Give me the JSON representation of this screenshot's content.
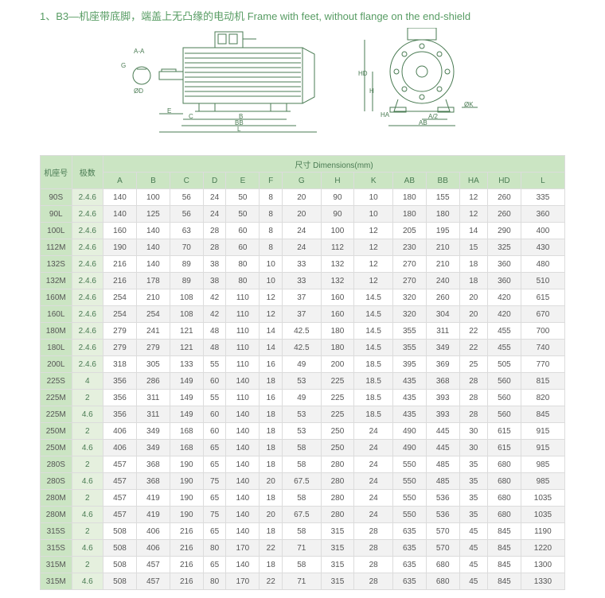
{
  "heading": "1、B3—机座带底脚，端盖上无凸缘的电动机    Frame with feet, without flange on the end-shield",
  "diagram": {
    "left_labels": [
      "A-A",
      "G",
      "ØD",
      "C",
      "E",
      "B",
      "BB",
      "L"
    ],
    "right_labels": [
      "HD",
      "H",
      "HA",
      "A/2",
      "AB",
      "ØK"
    ]
  },
  "table": {
    "header_groups": {
      "frame": "机座号",
      "pole": "极数",
      "dims": "尺寸  Dimensions(mm)"
    },
    "header_cols": [
      "A",
      "B",
      "C",
      "D",
      "E",
      "F",
      "G",
      "H",
      "K",
      "AB",
      "BB",
      "HA",
      "HD",
      "L"
    ],
    "rows": [
      [
        "90S",
        "2.4.6",
        "140",
        "100",
        "56",
        "24",
        "50",
        "8",
        "20",
        "90",
        "10",
        "180",
        "155",
        "12",
        "260",
        "335"
      ],
      [
        "90L",
        "2.4.6",
        "140",
        "125",
        "56",
        "24",
        "50",
        "8",
        "20",
        "90",
        "10",
        "180",
        "180",
        "12",
        "260",
        "360"
      ],
      [
        "100L",
        "2.4.6",
        "160",
        "140",
        "63",
        "28",
        "60",
        "8",
        "24",
        "100",
        "12",
        "205",
        "195",
        "14",
        "290",
        "400"
      ],
      [
        "112M",
        "2.4.6",
        "190",
        "140",
        "70",
        "28",
        "60",
        "8",
        "24",
        "112",
        "12",
        "230",
        "210",
        "15",
        "325",
        "430"
      ],
      [
        "132S",
        "2.4.6",
        "216",
        "140",
        "89",
        "38",
        "80",
        "10",
        "33",
        "132",
        "12",
        "270",
        "210",
        "18",
        "360",
        "480"
      ],
      [
        "132M",
        "2.4.6",
        "216",
        "178",
        "89",
        "38",
        "80",
        "10",
        "33",
        "132",
        "12",
        "270",
        "240",
        "18",
        "360",
        "510"
      ],
      [
        "160M",
        "2.4.6",
        "254",
        "210",
        "108",
        "42",
        "110",
        "12",
        "37",
        "160",
        "14.5",
        "320",
        "260",
        "20",
        "420",
        "615"
      ],
      [
        "160L",
        "2.4.6",
        "254",
        "254",
        "108",
        "42",
        "110",
        "12",
        "37",
        "160",
        "14.5",
        "320",
        "304",
        "20",
        "420",
        "670"
      ],
      [
        "180M",
        "2.4.6",
        "279",
        "241",
        "121",
        "48",
        "110",
        "14",
        "42.5",
        "180",
        "14.5",
        "355",
        "311",
        "22",
        "455",
        "700"
      ],
      [
        "180L",
        "2.4.6",
        "279",
        "279",
        "121",
        "48",
        "110",
        "14",
        "42.5",
        "180",
        "14.5",
        "355",
        "349",
        "22",
        "455",
        "740"
      ],
      [
        "200L",
        "2.4.6",
        "318",
        "305",
        "133",
        "55",
        "110",
        "16",
        "49",
        "200",
        "18.5",
        "395",
        "369",
        "25",
        "505",
        "770"
      ],
      [
        "225S",
        "4",
        "356",
        "286",
        "149",
        "60",
        "140",
        "18",
        "53",
        "225",
        "18.5",
        "435",
        "368",
        "28",
        "560",
        "815"
      ],
      [
        "225M",
        "2",
        "356",
        "311",
        "149",
        "55",
        "110",
        "16",
        "49",
        "225",
        "18.5",
        "435",
        "393",
        "28",
        "560",
        "820"
      ],
      [
        "225M",
        "4.6",
        "356",
        "311",
        "149",
        "60",
        "140",
        "18",
        "53",
        "225",
        "18.5",
        "435",
        "393",
        "28",
        "560",
        "845"
      ],
      [
        "250M",
        "2",
        "406",
        "349",
        "168",
        "60",
        "140",
        "18",
        "53",
        "250",
        "24",
        "490",
        "445",
        "30",
        "615",
        "915"
      ],
      [
        "250M",
        "4.6",
        "406",
        "349",
        "168",
        "65",
        "140",
        "18",
        "58",
        "250",
        "24",
        "490",
        "445",
        "30",
        "615",
        "915"
      ],
      [
        "280S",
        "2",
        "457",
        "368",
        "190",
        "65",
        "140",
        "18",
        "58",
        "280",
        "24",
        "550",
        "485",
        "35",
        "680",
        "985"
      ],
      [
        "280S",
        "4.6",
        "457",
        "368",
        "190",
        "75",
        "140",
        "20",
        "67.5",
        "280",
        "24",
        "550",
        "485",
        "35",
        "680",
        "985"
      ],
      [
        "280M",
        "2",
        "457",
        "419",
        "190",
        "65",
        "140",
        "18",
        "58",
        "280",
        "24",
        "550",
        "536",
        "35",
        "680",
        "1035"
      ],
      [
        "280M",
        "4.6",
        "457",
        "419",
        "190",
        "75",
        "140",
        "20",
        "67.5",
        "280",
        "24",
        "550",
        "536",
        "35",
        "680",
        "1035"
      ],
      [
        "315S",
        "2",
        "508",
        "406",
        "216",
        "65",
        "140",
        "18",
        "58",
        "315",
        "28",
        "635",
        "570",
        "45",
        "845",
        "1190"
      ],
      [
        "315S",
        "4.6",
        "508",
        "406",
        "216",
        "80",
        "170",
        "22",
        "71",
        "315",
        "28",
        "635",
        "570",
        "45",
        "845",
        "1220"
      ],
      [
        "315M",
        "2",
        "508",
        "457",
        "216",
        "65",
        "140",
        "18",
        "58",
        "315",
        "28",
        "635",
        "680",
        "45",
        "845",
        "1300"
      ],
      [
        "315M",
        "4.6",
        "508",
        "457",
        "216",
        "80",
        "170",
        "22",
        "71",
        "315",
        "28",
        "635",
        "680",
        "45",
        "845",
        "1330"
      ]
    ]
  }
}
